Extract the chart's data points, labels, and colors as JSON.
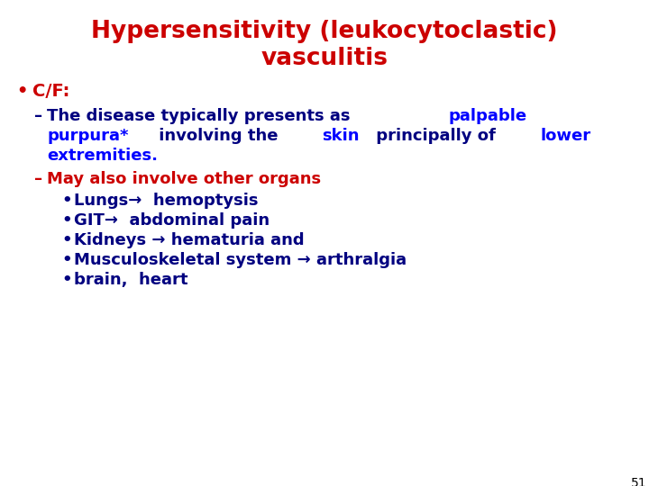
{
  "title_line1": "Hypersensitivity (leukocytoclastic)",
  "title_line2": "vasculitis",
  "title_color": "#cc0000",
  "background_color": "#ffffff",
  "slide_number": "51",
  "font_family": "Comic Sans MS",
  "fs_title": 19,
  "fs_body": 13,
  "dark_blue": "#000080",
  "bright_blue": "#0000ff",
  "red": "#cc0000",
  "black": "#000000"
}
